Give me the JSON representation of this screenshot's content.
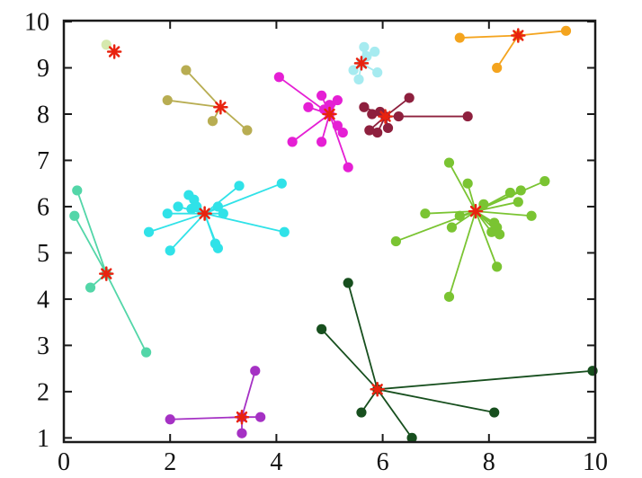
{
  "chart_data": {
    "type": "scatter",
    "title": "",
    "xlabel": "",
    "ylabel": "",
    "description": "K-means style cluster plot: colored data points connected by lines to red asterisk cluster centroids",
    "grid": false,
    "legend": "none",
    "xlim": [
      0,
      10
    ],
    "ylim": [
      0.91,
      10.02
    ],
    "x_ticks": [
      0,
      2,
      4,
      6,
      8,
      10
    ],
    "y_ticks": [
      1,
      2,
      3,
      4,
      5,
      6,
      7,
      8,
      9,
      10
    ],
    "axis_color": "#1a1a1a",
    "centroid_marker_color": "#e8230f",
    "clusters": [
      {
        "name": "pale-green",
        "color": "#d6e9ae",
        "centroid": [
          0.95,
          9.35
        ],
        "centroid_dot": false,
        "points": [
          [
            0.8,
            9.5
          ]
        ]
      },
      {
        "name": "dark-khaki",
        "color": "#b8ad52",
        "centroid": [
          2.95,
          8.15
        ],
        "centroid_dot": false,
        "points": [
          [
            2.3,
            8.95
          ],
          [
            1.95,
            8.3
          ],
          [
            2.8,
            7.85
          ],
          [
            3.45,
            7.65
          ]
        ]
      },
      {
        "name": "magenta",
        "color": "#e51fd4",
        "centroid": [
          5.0,
          8.0
        ],
        "centroid_dot": true,
        "points": [
          [
            4.05,
            8.8
          ],
          [
            4.85,
            8.4
          ],
          [
            5.15,
            8.3
          ],
          [
            4.6,
            8.15
          ],
          [
            5.0,
            8.2
          ],
          [
            4.9,
            8.1
          ],
          [
            5.15,
            7.75
          ],
          [
            5.25,
            7.6
          ],
          [
            4.3,
            7.4
          ],
          [
            4.85,
            7.4
          ],
          [
            5.35,
            6.85
          ]
        ]
      },
      {
        "name": "pale-turquoise",
        "color": "#a6ebf0",
        "centroid": [
          5.6,
          9.1
        ],
        "centroid_dot": true,
        "points": [
          [
            5.65,
            9.45
          ],
          [
            5.85,
            9.35
          ],
          [
            5.7,
            9.25
          ],
          [
            5.45,
            8.95
          ],
          [
            5.9,
            8.9
          ],
          [
            5.55,
            8.75
          ]
        ]
      },
      {
        "name": "orange",
        "color": "#f4a41e",
        "centroid": [
          8.55,
          9.7
        ],
        "centroid_dot": true,
        "points": [
          [
            7.45,
            9.65
          ],
          [
            9.45,
            9.8
          ],
          [
            8.15,
            9.0
          ]
        ]
      },
      {
        "name": "dark-red",
        "color": "#8e203e",
        "centroid": [
          6.05,
          7.95
        ],
        "centroid_dot": true,
        "points": [
          [
            6.5,
            8.35
          ],
          [
            5.65,
            8.15
          ],
          [
            5.8,
            8.0
          ],
          [
            5.95,
            8.05
          ],
          [
            6.3,
            7.95
          ],
          [
            7.6,
            7.95
          ],
          [
            6.1,
            7.7
          ],
          [
            5.75,
            7.65
          ],
          [
            5.9,
            7.6
          ]
        ]
      },
      {
        "name": "cyan",
        "color": "#30e2e8",
        "centroid": [
          2.65,
          5.85
        ],
        "centroid_dot": false,
        "points": [
          [
            3.3,
            6.45
          ],
          [
            2.35,
            6.25
          ],
          [
            2.45,
            6.15
          ],
          [
            2.15,
            6.0
          ],
          [
            2.5,
            6.0
          ],
          [
            2.4,
            5.95
          ],
          [
            1.95,
            5.85
          ],
          [
            2.9,
            6.0
          ],
          [
            3.0,
            5.85
          ],
          [
            1.6,
            5.45
          ],
          [
            2.0,
            5.05
          ],
          [
            2.85,
            5.2
          ],
          [
            2.9,
            5.1
          ],
          [
            4.1,
            6.5
          ],
          [
            4.15,
            5.45
          ]
        ]
      },
      {
        "name": "medium-aquamarine",
        "color": "#53d6a8",
        "centroid": [
          0.8,
          4.55
        ],
        "centroid_dot": true,
        "points": [
          [
            0.25,
            6.35
          ],
          [
            0.2,
            5.8
          ],
          [
            0.5,
            4.25
          ],
          [
            1.55,
            2.85
          ]
        ]
      },
      {
        "name": "yellow-green",
        "color": "#7ac432",
        "centroid": [
          7.75,
          5.9
        ],
        "centroid_dot": false,
        "points": [
          [
            7.25,
            6.95
          ],
          [
            7.6,
            6.5
          ],
          [
            9.05,
            6.55
          ],
          [
            8.6,
            6.35
          ],
          [
            8.4,
            6.3
          ],
          [
            8.55,
            6.1
          ],
          [
            7.9,
            6.05
          ],
          [
            6.8,
            5.85
          ],
          [
            7.45,
            5.8
          ],
          [
            8.8,
            5.8
          ],
          [
            8.1,
            5.65
          ],
          [
            8.15,
            5.55
          ],
          [
            7.3,
            5.55
          ],
          [
            8.05,
            5.45
          ],
          [
            8.2,
            5.4
          ],
          [
            6.25,
            5.25
          ],
          [
            8.15,
            4.7
          ],
          [
            7.25,
            4.05
          ]
        ]
      },
      {
        "name": "dark-orchid",
        "color": "#a531c4",
        "centroid": [
          3.35,
          1.45
        ],
        "centroid_dot": true,
        "points": [
          [
            3.6,
            2.45
          ],
          [
            2.0,
            1.4
          ],
          [
            3.7,
            1.45
          ],
          [
            3.35,
            1.1
          ]
        ]
      },
      {
        "name": "dark-green",
        "color": "#174f1e",
        "centroid": [
          5.9,
          2.05
        ],
        "centroid_dot": true,
        "points": [
          [
            5.35,
            4.35
          ],
          [
            4.85,
            3.35
          ],
          [
            5.6,
            1.55
          ],
          [
            6.55,
            1.0
          ],
          [
            8.1,
            1.55
          ],
          [
            9.95,
            2.45
          ]
        ]
      }
    ]
  }
}
